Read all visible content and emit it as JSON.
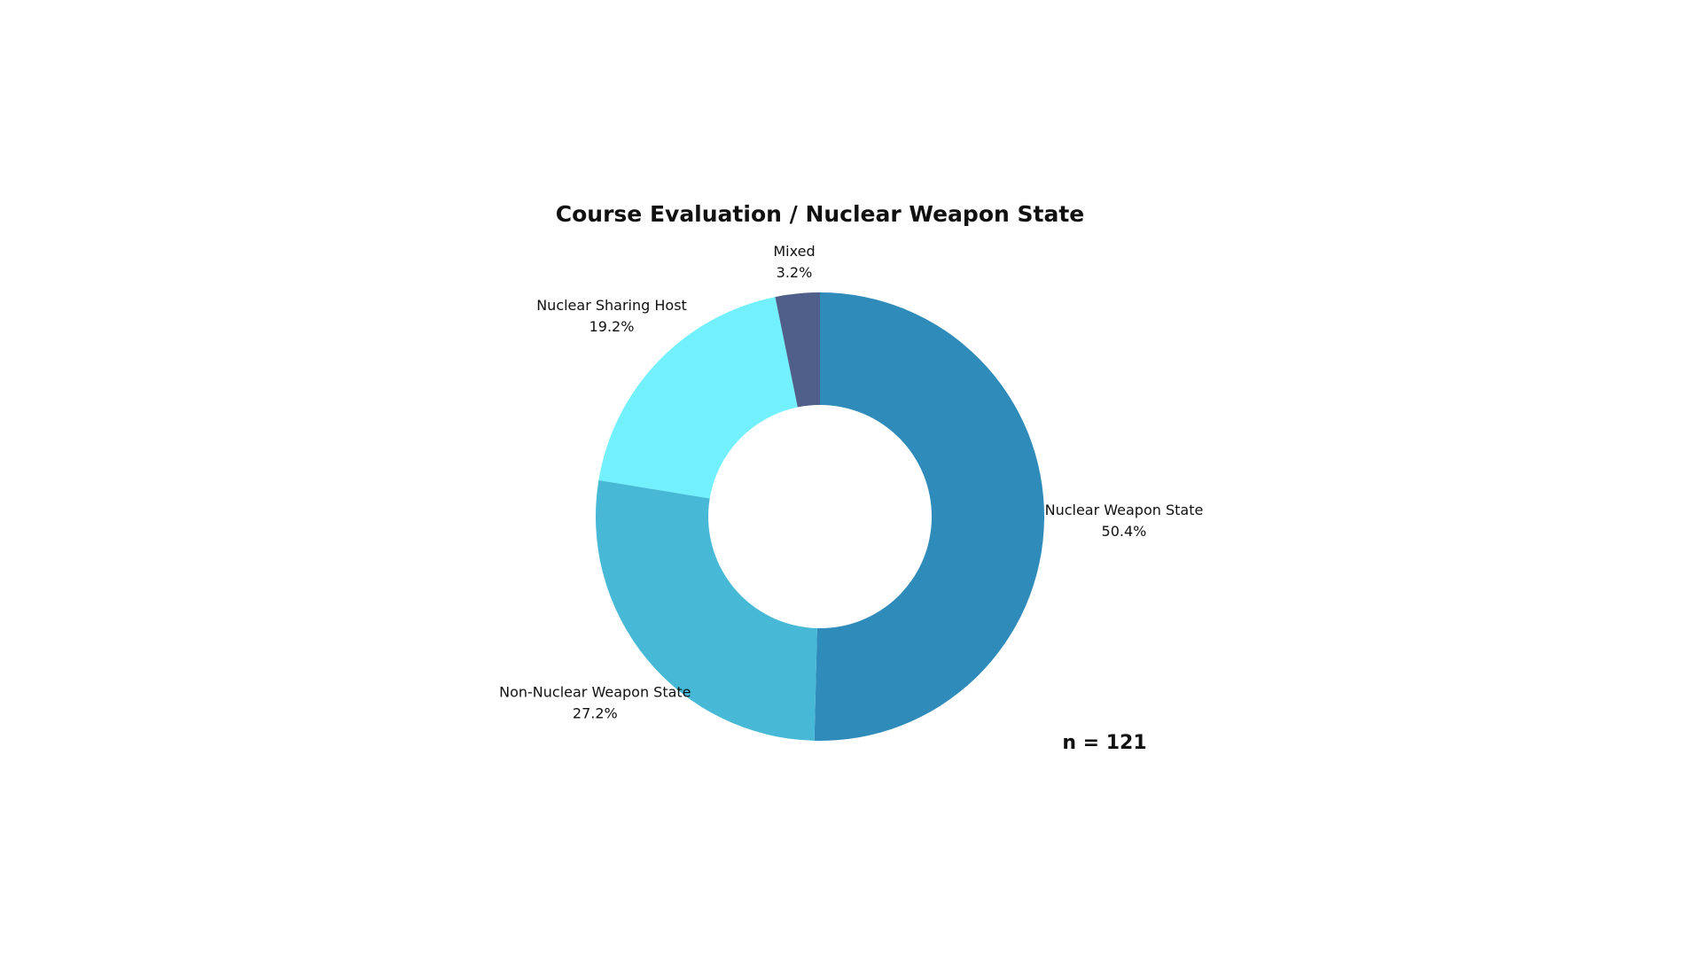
{
  "chart_data": {
    "type": "donut",
    "title": "Course Evaluation / Nuclear Weapon State",
    "categories": [
      "Nuclear Weapon State",
      "Non-Nuclear Weapon State",
      "Nuclear Sharing Host",
      "Mixed"
    ],
    "values": [
      50.4,
      27.2,
      19.2,
      3.2
    ],
    "value_labels": [
      "50.4%",
      "27.2%",
      "19.2%",
      "3.2%"
    ],
    "colors": [
      "#2e8bba",
      "#47b9d7",
      "#72f1fd",
      "#4f5f8a"
    ],
    "annotation": "n = 121"
  }
}
